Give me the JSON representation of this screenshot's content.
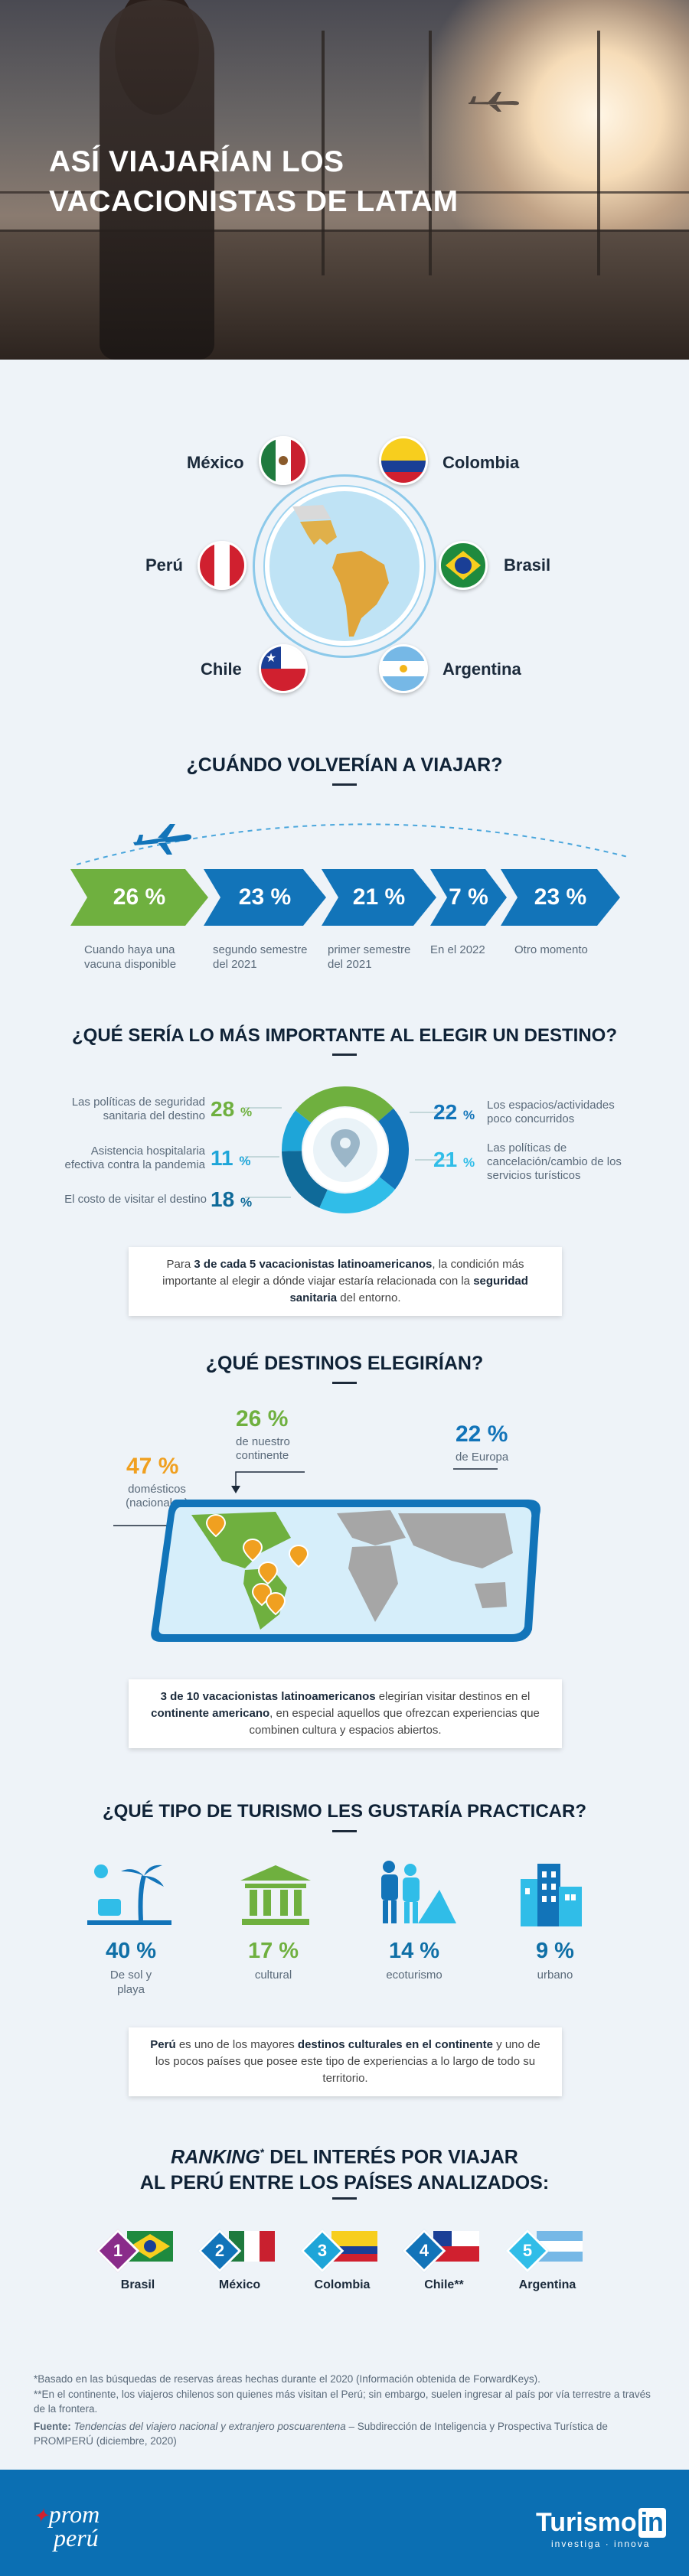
{
  "hero": {
    "title_line1": "ASÍ VIAJARÍAN LOS",
    "title_line2": "VACACIONISTAS DE LATAM"
  },
  "countries": [
    {
      "name": "México",
      "flag": "mexico-flag"
    },
    {
      "name": "Colombia",
      "flag": "colombia-flag"
    },
    {
      "name": "Perú",
      "flag": "peru-flag"
    },
    {
      "name": "Brasil",
      "flag": "brazil-flag"
    },
    {
      "name": "Chile",
      "flag": "chile-flag"
    },
    {
      "name": "Argentina",
      "flag": "argentina-flag"
    }
  ],
  "when": {
    "title": "¿CUÁNDO VOLVERÍAN A VIAJAR?",
    "items": [
      {
        "pct": "26 %",
        "label": "Cuando haya una vacuna disponible",
        "color": "#6fb03f"
      },
      {
        "pct": "23 %",
        "label": "segundo semestre del 2021",
        "color": "#1274b9"
      },
      {
        "pct": "21 %",
        "label": "primer semestre del 2021",
        "color": "#1274b9"
      },
      {
        "pct": "7 %",
        "label": "En el 2022",
        "color": "#1274b9"
      },
      {
        "pct": "23 %",
        "label": "Otro momento",
        "color": "#1274b9"
      }
    ]
  },
  "important": {
    "title": "¿QUÉ SERÍA LO MÁS IMPORTANTE AL ELEGIR UN DESTINO?",
    "left": [
      {
        "label": "Las políticas de seguridad sanitaria del destino",
        "pct": "28",
        "unit": "%",
        "color": "#6fb03f",
        "value": 28
      },
      {
        "label": "Asistencia hospitalaria efectiva contra la pandemia",
        "pct": "11",
        "unit": "%",
        "color": "#1ea5d8",
        "value": 11
      },
      {
        "label": "El costo de visitar el destino",
        "pct": "18",
        "unit": "%",
        "color": "#0f6a99",
        "value": 18
      }
    ],
    "right": [
      {
        "label": "Los espacios/actividades poco concurridos",
        "pct": "22",
        "unit": "%",
        "color": "#1274b9",
        "value": 22
      },
      {
        "label": "Las políticas de cancelación/cambio de los servicios turísticos",
        "pct": "21",
        "unit": "%",
        "color": "#30bde8",
        "value": 21
      }
    ],
    "note_pre": "Para ",
    "note_b1": "3 de cada 5 vacacionistas latinoamericanos",
    "note_mid": ", la condición más importante al elegir a dónde viajar estaría relacionada con la ",
    "note_b2": "seguridad sanitaria",
    "note_post": " del entorno."
  },
  "destinations": {
    "title": "¿QUÉ DESTINOS ELEGIRÍAN?",
    "items": [
      {
        "pct": "47 %",
        "label_1": "domésticos",
        "label_2": "(nacionales)",
        "color": "#f0a020"
      },
      {
        "pct": "26 %",
        "label_1": "de nuestro",
        "label_2": "continente",
        "color": "#6fb03f"
      },
      {
        "pct": "22 %",
        "label_1": "de Europa",
        "label_2": "",
        "color": "#1274b9"
      }
    ],
    "note_b1": "3 de 10 vacacionistas latinoamericanos",
    "note_mid": " elegirían visitar destinos en el ",
    "note_b2": "continente americano",
    "note_post": ", en especial aquellos que ofrezcan experiencias que combinen cultura y espacios abiertos."
  },
  "tourism": {
    "title": "¿QUÉ TIPO DE TURISMO LES GUSTARÍA PRACTICAR?",
    "items": [
      {
        "pct": "40 %",
        "label": "De sol y playa",
        "icon": "beach-icon",
        "color": "#1274b9"
      },
      {
        "pct": "17 %",
        "label": "cultural",
        "icon": "museum-icon",
        "color": "#6fb03f"
      },
      {
        "pct": "14 %",
        "label": "ecoturismo",
        "icon": "hikers-icon",
        "color": "#1274b9"
      },
      {
        "pct": "9 %",
        "label": "urbano",
        "icon": "city-icon",
        "color": "#1274b9"
      }
    ],
    "note_b1": "Perú",
    "note_mid": " es uno de los mayores ",
    "note_b2": "destinos culturales en el continente",
    "note_post": " y uno de los pocos países que posee este tipo de experiencias a lo largo de todo su territorio."
  },
  "ranking": {
    "title_em": "RANKING",
    "title_sup": "*",
    "title_rest": " DEL INTERÉS POR VIAJAR",
    "title_line2": "AL PERÚ ENTRE LOS PAÍSES ANALIZADOS:",
    "items": [
      {
        "rank": "1",
        "name": "Brasil",
        "color": "#8a2c8a"
      },
      {
        "rank": "2",
        "name": "México",
        "color": "#1274b9"
      },
      {
        "rank": "3",
        "name": "Colombia",
        "color": "#1ea5d8"
      },
      {
        "rank": "4",
        "name": "Chile**",
        "color": "#1274b9"
      },
      {
        "rank": "5",
        "name": "Argentina",
        "color": "#30bde8"
      }
    ]
  },
  "footnotes": {
    "n1": "*Basado en las búsquedas de reservas áreas hechas durante el 2020 (Información obtenida de ForwardKeys).",
    "n2": "**En el continente, los viajeros chilenos son quienes más visitan el Perú; sin embargo, suelen ingresar al país por vía terrestre a través de la frontera.",
    "src_label": "Fuente:",
    "src_italic": "Tendencias del viajero nacional y extranjero poscuarentena",
    "src_rest": " – Subdirección de Inteligencia y Prospectiva Turística de PROMPERÚ (diciembre, 2020)"
  },
  "footer": {
    "logo_left_1": "prom",
    "logo_left_2": "perú",
    "logo_right_1": "Turismo",
    "logo_right_2": "in",
    "logo_right_tag": "investiga · innova"
  }
}
